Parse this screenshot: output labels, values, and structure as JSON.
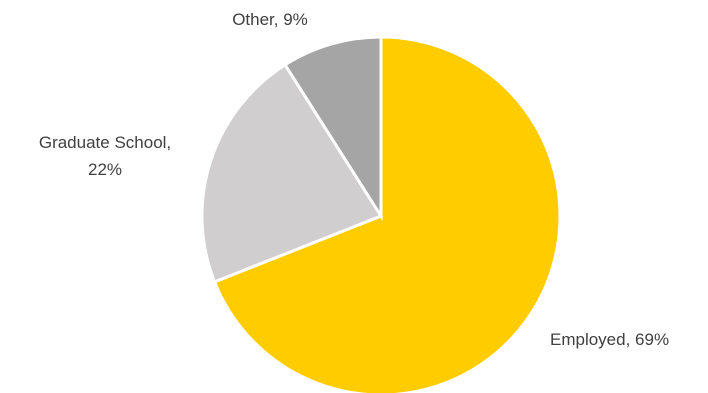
{
  "chart_data": {
    "type": "pie",
    "title": "",
    "slices": [
      {
        "label": "Employed",
        "value": 69,
        "display": "Employed, 69%",
        "color": "#FFCC00"
      },
      {
        "label": "Graduate School",
        "value": 22,
        "display_line1": "Graduate School,",
        "display_line2": "22%",
        "color": "#D0CECE"
      },
      {
        "label": "Other",
        "value": 9,
        "display": "Other, 9%",
        "color": "#A5A5A5"
      }
    ],
    "start_angle_deg": 0,
    "direction": "clockwise",
    "legend": "none",
    "data_labels": "outside"
  }
}
